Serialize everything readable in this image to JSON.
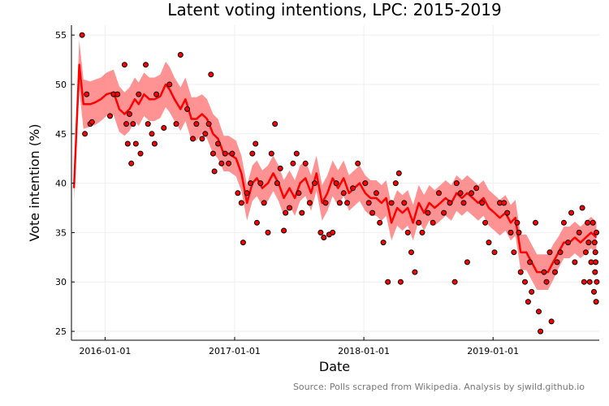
{
  "chart_data": {
    "type": "line",
    "title": "Latent voting intentions, LPC: 2015-2019",
    "xlabel": "Date",
    "ylabel": "Vote intention (%)",
    "source": "Source: Polls scraped from Wikipedia. Analysis by sjwild.github.io",
    "x_range": [
      "2015-09-28",
      "2019-10-28"
    ],
    "ylim": [
      24.1,
      56
    ],
    "x_ticks": [
      "2016-01-01",
      "2017-01-01",
      "2018-01-01",
      "2019-01-01"
    ],
    "y_ticks": [
      25,
      30,
      35,
      40,
      45,
      50,
      55
    ],
    "grid": true,
    "colors": {
      "line": "#ff0000",
      "band": "#ff8080",
      "points": "#ff0000",
      "point_outline": "#000000",
      "grid": "#eeeeee"
    },
    "series": [
      {
        "kind": "line",
        "x": [
          "2015-10-05",
          "2015-10-20",
          "2015-11-01",
          "2015-11-20",
          "2015-12-05",
          "2015-12-20",
          "2016-01-05",
          "2016-01-25",
          "2016-02-10",
          "2016-02-25",
          "2016-03-10",
          "2016-03-25",
          "2016-04-05",
          "2016-04-20",
          "2016-05-05",
          "2016-05-20",
          "2016-06-05",
          "2016-06-20",
          "2016-07-01",
          "2016-07-15",
          "2016-08-01",
          "2016-08-15",
          "2016-09-01",
          "2016-09-15",
          "2016-10-01",
          "2016-10-15",
          "2016-11-01",
          "2016-11-15",
          "2016-12-01",
          "2016-12-15",
          "2017-01-05",
          "2017-01-20",
          "2017-02-05",
          "2017-02-20",
          "2017-03-05",
          "2017-03-20",
          "2017-04-05",
          "2017-04-20",
          "2017-05-05",
          "2017-05-20",
          "2017-06-05",
          "2017-06-20",
          "2017-07-05",
          "2017-07-20",
          "2017-08-05",
          "2017-08-20",
          "2017-09-05",
          "2017-09-20",
          "2017-10-05",
          "2017-10-20",
          "2017-11-05",
          "2017-11-20",
          "2017-12-05",
          "2017-12-20",
          "2018-01-05",
          "2018-01-20",
          "2018-02-05",
          "2018-02-20",
          "2018-03-05",
          "2018-03-20",
          "2018-04-05",
          "2018-04-20",
          "2018-05-05",
          "2018-05-20",
          "2018-06-05",
          "2018-06-20",
          "2018-07-05",
          "2018-07-20",
          "2018-08-05",
          "2018-08-20",
          "2018-09-05",
          "2018-09-20",
          "2018-10-05",
          "2018-10-20",
          "2018-11-05",
          "2018-11-20",
          "2018-12-05",
          "2018-12-20",
          "2019-01-05",
          "2019-01-20",
          "2019-02-05",
          "2019-02-20",
          "2019-03-05",
          "2019-03-20",
          "2019-04-05",
          "2019-04-20",
          "2019-05-05",
          "2019-05-20",
          "2019-06-05",
          "2019-06-20",
          "2019-07-05",
          "2019-07-20",
          "2019-08-05",
          "2019-08-20",
          "2019-09-05",
          "2019-09-20",
          "2019-10-05",
          "2019-10-20"
        ],
        "y": [
          39.5,
          52.0,
          48.0,
          48.0,
          48.2,
          48.5,
          49.0,
          49.2,
          47.5,
          47.0,
          47.5,
          48.5,
          48.0,
          49.0,
          48.5,
          48.5,
          48.8,
          50.0,
          49.5,
          48.5,
          47.5,
          48.5,
          46.5,
          46.5,
          47.0,
          46.5,
          45.0,
          44.5,
          43.0,
          43.0,
          42.5,
          41.0,
          38.0,
          40.0,
          40.5,
          39.5,
          40.0,
          41.0,
          40.0,
          38.5,
          39.5,
          38.5,
          40.0,
          40.5,
          39.0,
          41.0,
          38.0,
          39.0,
          40.5,
          39.5,
          40.5,
          39.0,
          39.5,
          40.0,
          39.0,
          38.5,
          38.5,
          38.0,
          38.5,
          36.0,
          37.5,
          37.0,
          37.5,
          36.0,
          38.0,
          37.0,
          38.0,
          37.5,
          38.0,
          38.5,
          38.0,
          39.0,
          38.5,
          39.0,
          38.5,
          38.0,
          38.5,
          37.5,
          37.0,
          36.5,
          37.0,
          36.0,
          36.5,
          33.0,
          33.0,
          32.0,
          31.0,
          31.0,
          31.0,
          32.0,
          33.0,
          34.0,
          34.0,
          34.5,
          34.0,
          34.5,
          35.0,
          34.5
        ],
        "band_halfwidth": [
          1.2,
          2.5,
          2.5,
          2.3,
          2.3,
          2.2,
          2.2,
          2.3,
          2.3,
          2.2,
          2.2,
          2.2,
          2.2,
          2.2,
          2.2,
          2.2,
          2.2,
          2.3,
          2.3,
          2.2,
          2.2,
          2.2,
          2.2,
          2.2,
          2.0,
          2.0,
          2.0,
          2.0,
          1.8,
          1.8,
          1.8,
          1.8,
          1.8,
          1.8,
          1.8,
          1.8,
          1.8,
          1.8,
          1.8,
          1.8,
          1.8,
          1.8,
          1.8,
          1.8,
          1.8,
          1.8,
          1.8,
          1.8,
          1.8,
          1.8,
          1.8,
          1.8,
          1.8,
          1.8,
          1.8,
          1.8,
          1.8,
          1.8,
          1.8,
          1.8,
          1.8,
          1.8,
          1.8,
          1.8,
          1.8,
          1.8,
          1.8,
          1.8,
          1.8,
          1.8,
          1.8,
          1.8,
          1.8,
          1.8,
          1.8,
          1.8,
          1.8,
          1.8,
          1.8,
          1.8,
          1.8,
          1.8,
          1.8,
          1.8,
          1.8,
          1.8,
          1.8,
          1.8,
          1.8,
          1.8,
          1.6,
          1.6,
          1.6,
          1.6,
          1.6,
          1.6,
          1.6,
          1.6
        ]
      },
      {
        "kind": "scatter",
        "points": [
          [
            "2015-10-28",
            55
          ],
          [
            "2015-11-05",
            45
          ],
          [
            "2015-11-10",
            49
          ],
          [
            "2015-11-20",
            46
          ],
          [
            "2015-11-25",
            46.2
          ],
          [
            "2016-01-15",
            46.8
          ],
          [
            "2016-01-25",
            49
          ],
          [
            "2016-02-05",
            49
          ],
          [
            "2016-02-25",
            52
          ],
          [
            "2016-03-01",
            46
          ],
          [
            "2016-03-05",
            44
          ],
          [
            "2016-03-10",
            47
          ],
          [
            "2016-03-15",
            42
          ],
          [
            "2016-03-20",
            46
          ],
          [
            "2016-03-28",
            44
          ],
          [
            "2016-04-05",
            49
          ],
          [
            "2016-04-10",
            43
          ],
          [
            "2016-04-25",
            52
          ],
          [
            "2016-05-01",
            46
          ],
          [
            "2016-05-12",
            45
          ],
          [
            "2016-05-20",
            44
          ],
          [
            "2016-05-25",
            49
          ],
          [
            "2016-06-15",
            45.6
          ],
          [
            "2016-07-01",
            50
          ],
          [
            "2016-07-20",
            46
          ],
          [
            "2016-08-01",
            53
          ],
          [
            "2016-08-20",
            47.5
          ],
          [
            "2016-09-05",
            44.5
          ],
          [
            "2016-09-15",
            46
          ],
          [
            "2016-10-01",
            44.5
          ],
          [
            "2016-10-10",
            45
          ],
          [
            "2016-10-20",
            46
          ],
          [
            "2016-10-26",
            51
          ],
          [
            "2016-11-01",
            43
          ],
          [
            "2016-11-05",
            41.2
          ],
          [
            "2016-11-15",
            44
          ],
          [
            "2016-11-25",
            42
          ],
          [
            "2016-12-05",
            43
          ],
          [
            "2016-12-15",
            42
          ],
          [
            "2016-12-25",
            43
          ],
          [
            "2017-01-10",
            39
          ],
          [
            "2017-01-20",
            38
          ],
          [
            "2017-01-25",
            34
          ],
          [
            "2017-02-05",
            39
          ],
          [
            "2017-02-15",
            40
          ],
          [
            "2017-02-20",
            43
          ],
          [
            "2017-03-01",
            44
          ],
          [
            "2017-03-05",
            36
          ],
          [
            "2017-03-15",
            40
          ],
          [
            "2017-03-25",
            38
          ],
          [
            "2017-04-05",
            35
          ],
          [
            "2017-04-15",
            43
          ],
          [
            "2017-04-25",
            46
          ],
          [
            "2017-05-01",
            40
          ],
          [
            "2017-05-10",
            41.5
          ],
          [
            "2017-05-20",
            35.2
          ],
          [
            "2017-05-25",
            37
          ],
          [
            "2017-06-05",
            37.5
          ],
          [
            "2017-06-15",
            42
          ],
          [
            "2017-06-25",
            43
          ],
          [
            "2017-07-01",
            39
          ],
          [
            "2017-07-10",
            37
          ],
          [
            "2017-07-20",
            42
          ],
          [
            "2017-08-01",
            38
          ],
          [
            "2017-08-15",
            40
          ],
          [
            "2017-09-01",
            35
          ],
          [
            "2017-09-10",
            34.5
          ],
          [
            "2017-09-15",
            38
          ],
          [
            "2017-09-25",
            34.8
          ],
          [
            "2017-10-05",
            35
          ],
          [
            "2017-10-15",
            40
          ],
          [
            "2017-10-25",
            38
          ],
          [
            "2017-11-05",
            39
          ],
          [
            "2017-11-15",
            38
          ],
          [
            "2017-12-01",
            39.5
          ],
          [
            "2017-12-15",
            42
          ],
          [
            "2018-01-05",
            40
          ],
          [
            "2018-01-15",
            38
          ],
          [
            "2018-01-25",
            37
          ],
          [
            "2018-02-05",
            39
          ],
          [
            "2018-02-15",
            36
          ],
          [
            "2018-02-25",
            34
          ],
          [
            "2018-03-10",
            30
          ],
          [
            "2018-03-20",
            38
          ],
          [
            "2018-04-01",
            40
          ],
          [
            "2018-04-10",
            41
          ],
          [
            "2018-04-15",
            30
          ],
          [
            "2018-04-25",
            38
          ],
          [
            "2018-05-05",
            35
          ],
          [
            "2018-05-15",
            33
          ],
          [
            "2018-05-25",
            31
          ],
          [
            "2018-06-05",
            36
          ],
          [
            "2018-06-15",
            35
          ],
          [
            "2018-07-01",
            37
          ],
          [
            "2018-07-15",
            36
          ],
          [
            "2018-08-01",
            39
          ],
          [
            "2018-08-15",
            37
          ],
          [
            "2018-09-01",
            38
          ],
          [
            "2018-09-15",
            30
          ],
          [
            "2018-09-20",
            40
          ],
          [
            "2018-10-01",
            39
          ],
          [
            "2018-10-10",
            38
          ],
          [
            "2018-10-20",
            32
          ],
          [
            "2018-11-01",
            39
          ],
          [
            "2018-11-15",
            39.5
          ],
          [
            "2018-12-01",
            38
          ],
          [
            "2018-12-10",
            36
          ],
          [
            "2018-12-20",
            34
          ],
          [
            "2019-01-05",
            33
          ],
          [
            "2019-01-20",
            38
          ],
          [
            "2019-02-01",
            38
          ],
          [
            "2019-02-10",
            37
          ],
          [
            "2019-02-20",
            35
          ],
          [
            "2019-03-01",
            33
          ],
          [
            "2019-03-10",
            36
          ],
          [
            "2019-03-15",
            35
          ],
          [
            "2019-03-20",
            31
          ],
          [
            "2019-04-01",
            30
          ],
          [
            "2019-04-10",
            28
          ],
          [
            "2019-04-15",
            32
          ],
          [
            "2019-04-20",
            29
          ],
          [
            "2019-05-01",
            36
          ],
          [
            "2019-05-10",
            27
          ],
          [
            "2019-05-15",
            25
          ],
          [
            "2019-05-25",
            31
          ],
          [
            "2019-06-01",
            30
          ],
          [
            "2019-06-10",
            33
          ],
          [
            "2019-06-15",
            26
          ],
          [
            "2019-06-25",
            31
          ],
          [
            "2019-07-01",
            32
          ],
          [
            "2019-07-10",
            33
          ],
          [
            "2019-07-20",
            36
          ],
          [
            "2019-08-01",
            34
          ],
          [
            "2019-08-10",
            37
          ],
          [
            "2019-08-20",
            32
          ],
          [
            "2019-09-01",
            35
          ],
          [
            "2019-09-10",
            37.5
          ],
          [
            "2019-09-15",
            30
          ],
          [
            "2019-09-20",
            33
          ],
          [
            "2019-09-25",
            36
          ],
          [
            "2019-09-28",
            34
          ],
          [
            "2019-10-01",
            30
          ],
          [
            "2019-10-05",
            32
          ],
          [
            "2019-10-10",
            36
          ],
          [
            "2019-10-13",
            29
          ],
          [
            "2019-10-15",
            34
          ],
          [
            "2019-10-16",
            31
          ],
          [
            "2019-10-17",
            33
          ],
          [
            "2019-10-18",
            32
          ],
          [
            "2019-10-19",
            28
          ],
          [
            "2019-10-20",
            35
          ],
          [
            "2019-10-21",
            30
          ]
        ]
      }
    ]
  }
}
